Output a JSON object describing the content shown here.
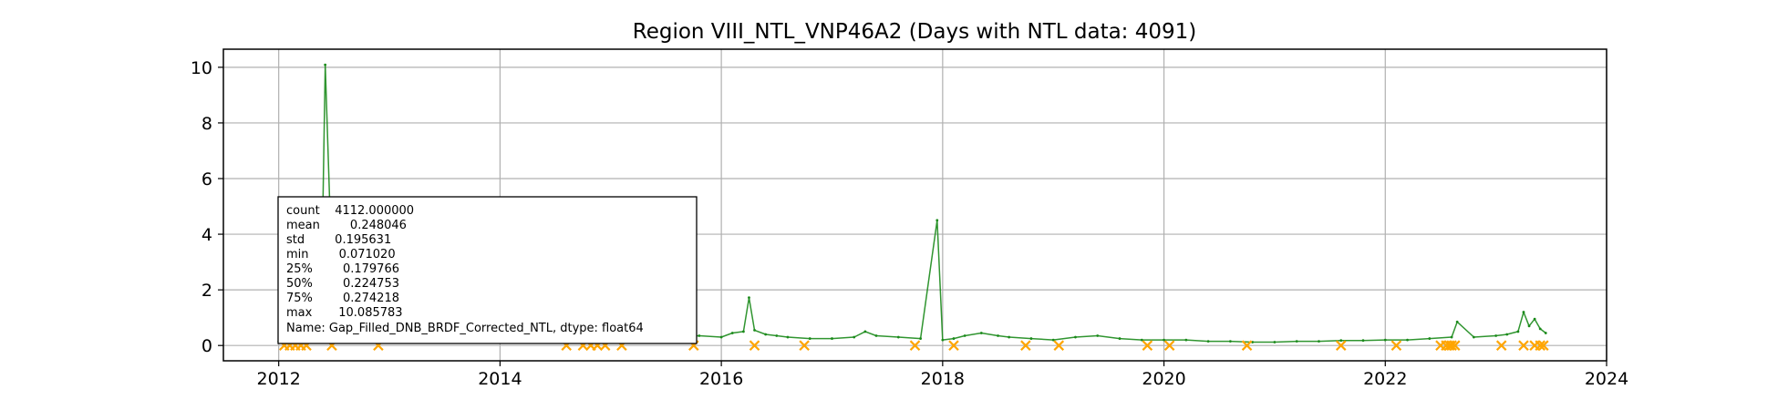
{
  "chart_data": {
    "type": "line",
    "title": "Region VIII_NTL_VNP46A2 (Days with NTL data: 4091)",
    "xlabel": "",
    "ylabel": "",
    "xlim": [
      2011.5,
      2024.0
    ],
    "ylim": [
      -0.55,
      10.65
    ],
    "x_ticks": [
      "2012",
      "2014",
      "2016",
      "2018",
      "2020",
      "2022",
      "2024"
    ],
    "y_ticks": [
      "0",
      "2",
      "4",
      "6",
      "8",
      "10"
    ],
    "grid": true,
    "line_color": "#1a8a1a",
    "marker_color": "#ffa500",
    "series": [
      {
        "values_note": "",
        "x": [
          2012.0,
          2012.1,
          2012.2,
          2012.3,
          2012.38,
          2012.42,
          2012.5,
          2012.6,
          2012.8,
          2013.0,
          2013.2,
          2013.4,
          2013.6,
          2013.8,
          2014.0,
          2014.2,
          2014.4,
          2014.6,
          2014.8,
          2015.0,
          2015.2,
          2015.4,
          2015.6,
          2015.8,
          2016.0,
          2016.1,
          2016.2,
          2016.25,
          2016.3,
          2016.4,
          2016.5,
          2016.6,
          2016.8,
          2017.0,
          2017.2,
          2017.3,
          2017.4,
          2017.6,
          2017.8,
          2017.95,
          2018.0,
          2018.1,
          2018.2,
          2018.35,
          2018.5,
          2018.6,
          2018.8,
          2019.0,
          2019.2,
          2019.4,
          2019.6,
          2019.8,
          2020.0,
          2020.2,
          2020.4,
          2020.6,
          2020.8,
          2021.0,
          2021.2,
          2021.4,
          2021.6,
          2021.8,
          2022.0,
          2022.2,
          2022.4,
          2022.6,
          2022.65,
          2022.8,
          2023.0,
          2023.1,
          2023.2,
          2023.25,
          2023.3,
          2023.35,
          2023.4,
          2023.45
        ],
        "y": [
          0.15,
          0.2,
          0.25,
          0.3,
          0.35,
          10.09,
          0.3,
          0.25,
          0.2,
          0.15,
          0.15,
          0.15,
          0.15,
          0.15,
          0.1,
          0.15,
          0.15,
          0.2,
          0.2,
          0.2,
          0.25,
          0.25,
          0.3,
          0.35,
          0.3,
          0.45,
          0.5,
          1.72,
          0.55,
          0.4,
          0.35,
          0.3,
          0.25,
          0.25,
          0.3,
          0.5,
          0.35,
          0.3,
          0.25,
          4.5,
          0.2,
          0.25,
          0.35,
          0.45,
          0.35,
          0.3,
          0.25,
          0.2,
          0.3,
          0.35,
          0.25,
          0.2,
          0.2,
          0.2,
          0.15,
          0.15,
          0.12,
          0.12,
          0.15,
          0.15,
          0.18,
          0.18,
          0.2,
          0.2,
          0.25,
          0.3,
          0.85,
          0.3,
          0.35,
          0.4,
          0.5,
          1.2,
          0.7,
          0.95,
          0.6,
          0.45
        ]
      }
    ],
    "missing_markers_x": [
      2012.05,
      2012.1,
      2012.15,
      2012.2,
      2012.25,
      2012.48,
      2012.9,
      2014.6,
      2014.75,
      2014.82,
      2014.88,
      2014.95,
      2015.1,
      2015.75,
      2016.3,
      2016.75,
      2017.75,
      2018.1,
      2018.75,
      2019.05,
      2019.85,
      2020.05,
      2020.75,
      2021.6,
      2022.1,
      2022.5,
      2022.55,
      2022.58,
      2022.6,
      2022.63,
      2023.05,
      2023.25,
      2023.35,
      2023.4,
      2023.43
    ]
  },
  "stats_box": {
    "lines": [
      "count    4112.000000",
      "mean        0.248046",
      "std        0.195631",
      "min        0.071020",
      "25%        0.179766",
      "50%        0.224753",
      "75%        0.274218",
      "max       10.085783",
      "Name: Gap_Filled_DNB_BRDF_Corrected_NTL, dtype: float64"
    ]
  }
}
